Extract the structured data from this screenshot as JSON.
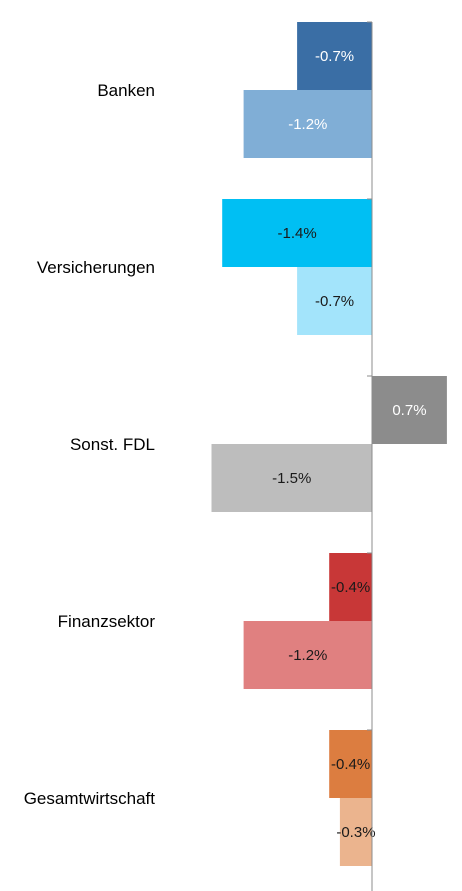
{
  "chart_data": {
    "type": "bar",
    "orientation": "horizontal",
    "title": "",
    "xlabel": "",
    "ylabel": "",
    "categories": [
      "Banken",
      "Versicherungen",
      "Sonst. FDL",
      "Finanzsektor",
      "Gesamtwirtschaft"
    ],
    "series": [
      {
        "values": [
          -0.7,
          -1.4,
          0.7,
          -0.4,
          -0.4
        ],
        "labels": [
          "-0.7%",
          "-1.4%",
          "0.7%",
          "-0.4%",
          "-0.4%"
        ],
        "colors": [
          "#3a6ea5",
          "#00bff3",
          "#8c8c8c",
          "#c83737",
          "#dc7d40"
        ],
        "label_colors": [
          "#ffffff",
          "#1a1a1a",
          "#ffffff",
          "#1a1a1a",
          "#1a1a1a"
        ]
      },
      {
        "values": [
          -1.2,
          -0.7,
          -1.5,
          -1.2,
          -0.3
        ],
        "labels": [
          "-1.2%",
          "-0.7%",
          "-1.5%",
          "-1.2%",
          "-0.3%"
        ],
        "colors": [
          "#80aed6",
          "#a3e4fb",
          "#bdbdbd",
          "#e08080",
          "#ebb48e"
        ],
        "label_colors": [
          "#ffffff",
          "#1a1a1a",
          "#1a1a1a",
          "#1a1a1a",
          "#1a1a1a"
        ]
      }
    ],
    "xlim": [
      -1.5,
      0.73
    ],
    "grid": false,
    "legend": "none",
    "axis_color": "#8c8c8c"
  }
}
